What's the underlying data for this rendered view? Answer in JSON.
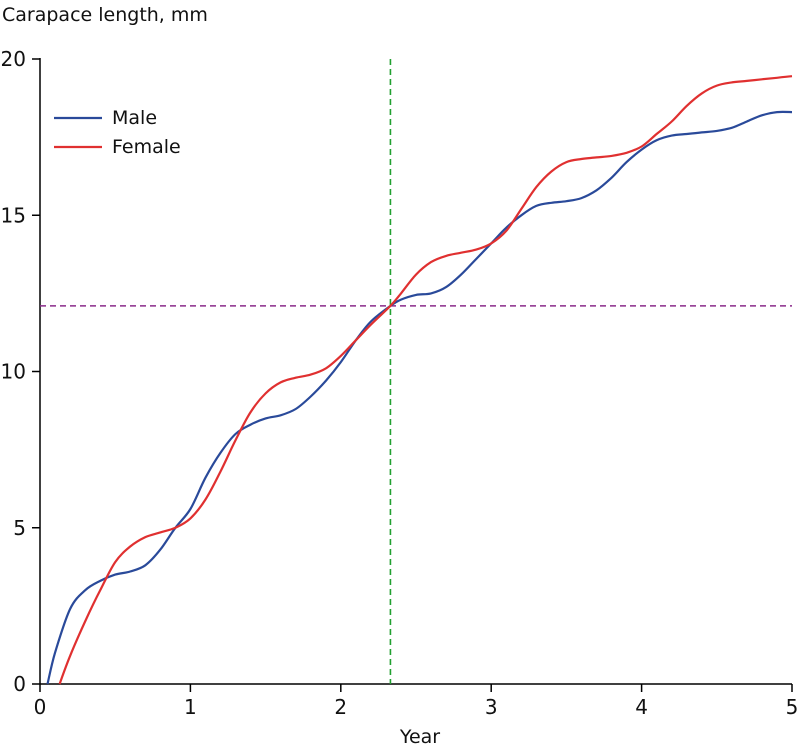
{
  "chart_data": {
    "type": "line",
    "title": "",
    "ylabel": "Carapace length, mm",
    "xlabel": "Year",
    "xlim": [
      0,
      5
    ],
    "ylim": [
      0,
      20
    ],
    "xticks": [
      0,
      1,
      2,
      3,
      4,
      5
    ],
    "xtick_labels": [
      "0",
      "1",
      "2",
      "3",
      "4",
      "5"
    ],
    "yticks": [
      0,
      5,
      10,
      15,
      20
    ],
    "ytick_labels": [
      "0",
      "5",
      "10",
      "15",
      "20"
    ],
    "grid": false,
    "legend_position": "top-left",
    "series": [
      {
        "name": "Male",
        "color": "#2a4a9a",
        "x": [
          0.05,
          0.1,
          0.2,
          0.3,
          0.4,
          0.5,
          0.6,
          0.7,
          0.8,
          0.9,
          1.0,
          1.1,
          1.2,
          1.3,
          1.4,
          1.5,
          1.6,
          1.7,
          1.8,
          1.9,
          2.0,
          2.1,
          2.2,
          2.33,
          2.4,
          2.5,
          2.6,
          2.7,
          2.8,
          2.9,
          3.0,
          3.1,
          3.2,
          3.3,
          3.4,
          3.5,
          3.6,
          3.7,
          3.8,
          3.9,
          4.0,
          4.1,
          4.2,
          4.3,
          4.4,
          4.5,
          4.6,
          4.7,
          4.8,
          4.9,
          5.0
        ],
        "y": [
          0.0,
          1.0,
          2.4,
          3.0,
          3.3,
          3.5,
          3.6,
          3.8,
          4.3,
          5.0,
          5.6,
          6.6,
          7.4,
          8.0,
          8.3,
          8.5,
          8.6,
          8.8,
          9.2,
          9.7,
          10.3,
          11.0,
          11.6,
          12.1,
          12.3,
          12.45,
          12.5,
          12.7,
          13.1,
          13.6,
          14.1,
          14.6,
          15.0,
          15.3,
          15.4,
          15.45,
          15.55,
          15.8,
          16.2,
          16.7,
          17.1,
          17.4,
          17.55,
          17.6,
          17.65,
          17.7,
          17.8,
          18.0,
          18.2,
          18.3,
          18.3
        ]
      },
      {
        "name": "Female",
        "color": "#e03030",
        "x": [
          0.13,
          0.2,
          0.3,
          0.4,
          0.5,
          0.6,
          0.7,
          0.8,
          0.9,
          1.0,
          1.1,
          1.2,
          1.3,
          1.4,
          1.5,
          1.6,
          1.7,
          1.8,
          1.9,
          2.0,
          2.1,
          2.2,
          2.33,
          2.4,
          2.5,
          2.6,
          2.7,
          2.8,
          2.9,
          3.0,
          3.1,
          3.2,
          3.3,
          3.4,
          3.5,
          3.6,
          3.7,
          3.8,
          3.9,
          4.0,
          4.1,
          4.2,
          4.3,
          4.4,
          4.5,
          4.6,
          4.7,
          4.8,
          4.9,
          5.0
        ],
        "y": [
          0.0,
          0.9,
          2.0,
          3.0,
          3.9,
          4.4,
          4.7,
          4.85,
          5.0,
          5.3,
          5.9,
          6.8,
          7.8,
          8.7,
          9.3,
          9.65,
          9.8,
          9.9,
          10.1,
          10.5,
          11.0,
          11.5,
          12.1,
          12.5,
          13.1,
          13.5,
          13.7,
          13.8,
          13.9,
          14.1,
          14.5,
          15.2,
          15.9,
          16.4,
          16.7,
          16.8,
          16.85,
          16.9,
          17.0,
          17.2,
          17.6,
          18.0,
          18.5,
          18.9,
          19.15,
          19.25,
          19.3,
          19.35,
          19.4,
          19.45
        ]
      }
    ],
    "reference_lines": [
      {
        "orientation": "vertical",
        "value": 2.33,
        "color": "#22a030",
        "style": "dashed"
      },
      {
        "orientation": "horizontal",
        "value": 12.1,
        "color": "#8a2a8a",
        "style": "dashed"
      }
    ]
  }
}
